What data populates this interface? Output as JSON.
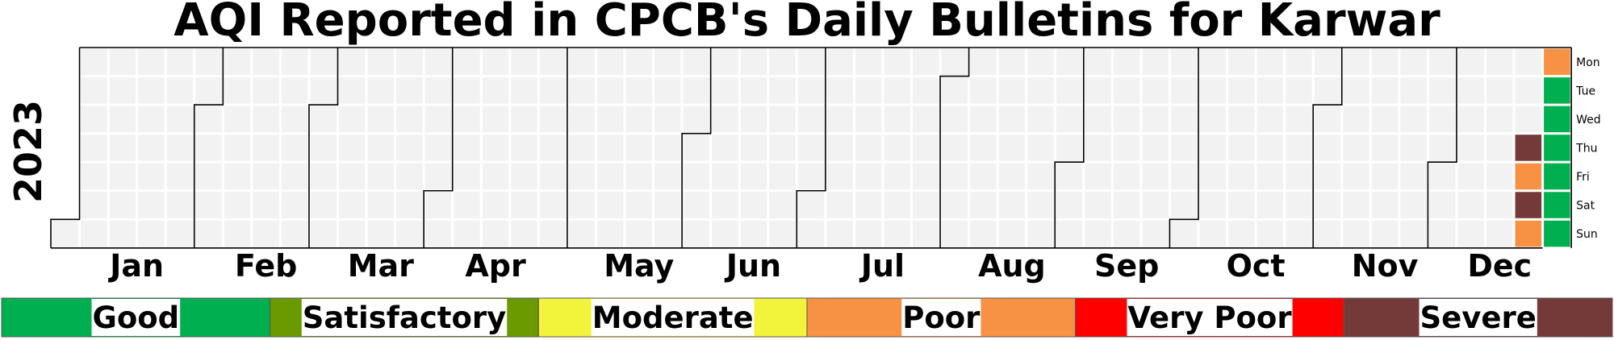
{
  "chart_data": {
    "type": "heatmap",
    "title": "AQI Reported in CPCB's Daily Bulletins for Karwar",
    "year": "2023",
    "months": [
      "Jan",
      "Feb",
      "Mar",
      "Apr",
      "May",
      "Jun",
      "Jul",
      "Aug",
      "Sep",
      "Oct",
      "Nov",
      "Dec"
    ],
    "weekdays": [
      "Mon",
      "Tue",
      "Wed",
      "Thu",
      "Fri",
      "Sat",
      "Sun"
    ],
    "empty_color": "#f2f2f2",
    "categories": [
      {
        "label": "Good",
        "color": "#00b050"
      },
      {
        "label": "Satisfactory",
        "color": "#6a9a00"
      },
      {
        "label": "Moderate",
        "color": "#f2f43c"
      },
      {
        "label": "Poor",
        "color": "#f79143"
      },
      {
        "label": "Very Poor",
        "color": "#ff0000"
      },
      {
        "label": "Severe",
        "color": "#743a3a"
      }
    ],
    "values": [
      {
        "date": "2023-12-21",
        "category": "Severe"
      },
      {
        "date": "2023-12-22",
        "category": "Poor"
      },
      {
        "date": "2023-12-23",
        "category": "Severe"
      },
      {
        "date": "2023-12-24",
        "category": "Poor"
      },
      {
        "date": "2023-12-25",
        "category": "Poor"
      },
      {
        "date": "2023-12-26",
        "category": "Good"
      },
      {
        "date": "2023-12-27",
        "category": "Good"
      },
      {
        "date": "2023-12-28",
        "category": "Good"
      },
      {
        "date": "2023-12-29",
        "category": "Good"
      },
      {
        "date": "2023-12-30",
        "category": "Good"
      },
      {
        "date": "2023-12-31",
        "category": "Good"
      }
    ]
  }
}
